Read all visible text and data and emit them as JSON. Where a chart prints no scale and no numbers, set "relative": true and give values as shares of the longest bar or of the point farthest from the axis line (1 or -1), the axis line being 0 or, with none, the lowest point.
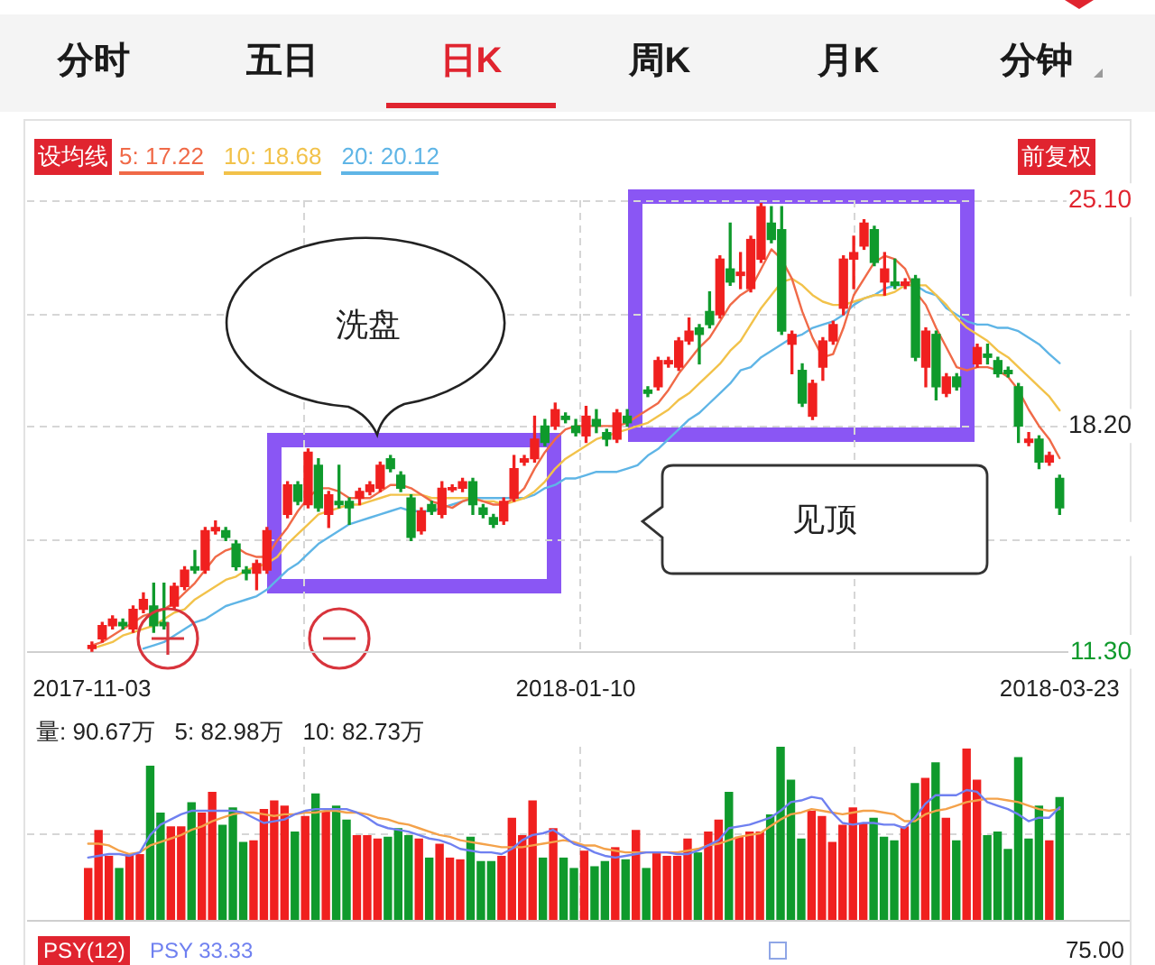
{
  "chart_data": [
    {
      "type": "other",
      "annotations": [
        "分时",
        "五日",
        "日K",
        "周K",
        "月K",
        "分钟"
      ]
    },
    {
      "type": "candlestick",
      "categories": [
        "2017-11-03",
        null,
        null,
        null,
        null,
        null,
        null,
        null,
        null,
        null,
        null,
        null,
        null,
        null,
        null,
        null,
        null,
        null,
        null,
        null,
        null,
        null,
        null,
        null,
        null,
        null,
        null,
        null,
        null,
        null,
        null,
        null,
        null,
        null,
        null,
        null,
        null,
        null,
        null,
        null,
        null,
        null,
        null,
        null,
        null,
        null,
        null,
        "2018-01-10",
        null,
        null,
        null,
        null,
        null,
        null,
        null,
        null,
        null,
        null,
        null,
        null,
        null,
        null,
        null,
        null,
        null,
        null,
        null,
        null,
        null,
        null,
        null,
        null,
        null,
        null,
        null,
        null,
        null,
        null,
        null,
        null,
        null,
        null,
        null,
        null,
        null,
        null,
        null,
        null,
        null,
        null,
        null,
        null,
        null,
        null,
        "2018-03-23"
      ],
      "ohlc": [
        [
          11.4,
          11.6,
          11.3,
          11.5
        ],
        [
          11.7,
          12.2,
          11.6,
          12.1
        ],
        [
          12.1,
          12.4,
          12.0,
          12.3
        ],
        [
          12.2,
          12.3,
          12.0,
          12.1
        ],
        [
          12.0,
          12.7,
          11.9,
          12.6
        ],
        [
          12.6,
          13.1,
          12.5,
          12.9
        ],
        [
          12.7,
          13.4,
          11.9,
          12.1
        ],
        [
          12.2,
          13.4,
          12.0,
          12.1
        ],
        [
          12.7,
          13.4,
          12.6,
          13.3
        ],
        [
          13.3,
          13.9,
          13.2,
          13.8
        ],
        [
          13.9,
          14.4,
          13.7,
          13.8
        ],
        [
          13.8,
          15.1,
          13.7,
          15.0
        ],
        [
          15.0,
          15.3,
          14.9,
          15.1
        ],
        [
          15.0,
          15.1,
          14.7,
          14.8
        ],
        [
          14.6,
          14.7,
          13.8,
          13.9
        ],
        [
          13.8,
          13.9,
          13.5,
          13.7
        ],
        [
          13.7,
          14.1,
          13.2,
          14.0
        ],
        [
          13.8,
          15.1,
          13.7,
          15.0
        ],
        null,
        [
          15.5,
          16.5,
          15.4,
          16.4
        ],
        [
          16.4,
          16.5,
          15.8,
          15.9
        ],
        [
          15.8,
          17.5,
          15.7,
          17.4
        ],
        [
          17.0,
          17.2,
          15.6,
          15.7
        ],
        [
          15.5,
          16.2,
          15.1,
          16.1
        ],
        [
          15.9,
          17.0,
          15.7,
          15.8
        ],
        [
          15.9,
          16.0,
          15.2,
          15.7
        ],
        [
          16.0,
          16.3,
          15.8,
          16.2
        ],
        [
          16.2,
          16.5,
          16.1,
          16.4
        ],
        [
          16.3,
          17.1,
          16.2,
          17.0
        ],
        [
          17.2,
          17.3,
          16.8,
          16.9
        ],
        [
          16.7,
          16.8,
          16.2,
          16.3
        ],
        [
          16.0,
          16.1,
          14.7,
          14.8
        ],
        [
          15.0,
          15.7,
          14.9,
          15.6
        ],
        [
          15.8,
          15.9,
          15.5,
          15.6
        ],
        [
          15.5,
          16.5,
          15.4,
          16.3
        ],
        [
          16.25,
          16.4,
          16.2,
          16.32
        ],
        [
          16.3,
          16.6,
          16.2,
          16.5
        ],
        [
          16.5,
          16.6,
          15.5,
          15.8
        ],
        [
          15.7,
          15.8,
          15.4,
          15.5
        ],
        [
          15.4,
          15.5,
          15.1,
          15.2
        ],
        [
          15.3,
          16.0,
          15.2,
          15.9
        ],
        [
          16.0,
          17.3,
          15.9,
          16.9
        ],
        [
          17.1,
          17.3,
          17.0,
          17.2
        ],
        [
          17.2,
          18.5,
          17.1,
          17.8
        ],
        [
          18.2,
          18.4,
          17.6,
          17.7
        ],
        [
          18.2,
          18.9,
          18.1,
          18.7
        ],
        [
          18.5,
          18.6,
          18.3,
          18.4
        ],
        [
          18.2,
          18.4,
          17.9,
          18.0
        ],
        [
          17.9,
          18.8,
          17.7,
          18.5
        ],
        [
          18.4,
          18.7,
          18.0,
          18.2
        ],
        [
          18.0,
          18.1,
          17.6,
          17.8
        ],
        [
          17.8,
          18.7,
          17.7,
          18.6
        ],
        [
          18.5,
          18.7,
          18.2,
          18.3
        ],
        null,
        [
          19.3,
          19.4,
          19.1,
          19.2
        ],
        [
          19.4,
          20.3,
          19.3,
          20.2
        ],
        [
          20.1,
          20.3,
          20.0,
          20.2
        ],
        [
          20.0,
          20.9,
          19.9,
          20.8
        ],
        [
          20.8,
          21.5,
          20.7,
          21.1
        ],
        [
          21.2,
          21.3,
          20.1,
          21.0
        ],
        [
          21.7,
          22.3,
          21.2,
          21.3
        ],
        [
          21.6,
          23.4,
          21.5,
          23.3
        ],
        [
          23.0,
          24.4,
          22.5,
          22.6
        ],
        [
          22.8,
          23.5,
          22.4,
          22.9
        ],
        [
          22.4,
          24.0,
          22.3,
          23.9
        ],
        [
          23.3,
          25.0,
          23.2,
          24.9
        ],
        [
          24.4,
          24.9,
          23.8,
          23.9
        ],
        [
          24.2,
          24.9,
          21.0,
          21.1
        ],
        [
          20.7,
          21.1,
          19.8,
          21.0
        ],
        [
          19.9,
          20.1,
          18.8,
          18.9
        ],
        [
          18.5,
          19.6,
          18.4,
          19.5
        ],
        [
          20.0,
          20.9,
          19.6,
          20.8
        ],
        [
          20.8,
          21.4,
          20.7,
          21.3
        ],
        [
          21.8,
          23.4,
          21.6,
          23.3
        ],
        [
          23.3,
          24.0,
          22.4,
          23.5
        ],
        [
          23.7,
          24.5,
          23.6,
          24.4
        ],
        [
          24.2,
          24.3,
          23.1,
          23.2
        ],
        [
          22.6,
          23.5,
          22.2,
          23.0
        ],
        [
          22.6,
          23.3,
          22.4,
          22.5
        ],
        [
          22.5,
          22.7,
          22.4,
          22.6
        ],
        [
          22.7,
          22.8,
          20.2,
          20.3
        ],
        [
          20.0,
          21.2,
          19.4,
          21.1
        ],
        [
          21.0,
          21.1,
          19.0,
          19.4
        ],
        [
          19.2,
          19.8,
          19.1,
          19.7
        ],
        [
          19.7,
          19.8,
          19.3,
          19.4
        ],
        null,
        [
          20.1,
          20.7,
          20.0,
          20.6
        ],
        [
          20.4,
          20.7,
          20.1,
          20.3
        ],
        [
          20.2,
          20.3,
          19.7,
          19.8
        ],
        [
          19.9,
          20.0,
          19.7,
          19.8
        ],
        [
          19.4,
          19.5,
          17.7,
          18.2
        ],
        [
          17.7,
          18.0,
          17.6,
          17.8
        ],
        [
          17.8,
          17.9,
          16.9,
          17.1
        ],
        [
          17.1,
          17.4,
          17.0,
          17.3
        ],
        [
          16.6,
          16.7,
          15.5,
          15.7
        ]
      ],
      "colors": [
        "#f0201f",
        "#f0201f",
        "#f0201f",
        "#0f9a2c",
        "#f0201f",
        "#f0201f",
        "#0f9a2c",
        "#0f9a2c",
        "#f0201f",
        "#f0201f",
        "#0f9a2c",
        "#f0201f",
        "#f0201f",
        "#0f9a2c",
        "#0f9a2c",
        "#0f9a2c",
        "#f0201f",
        "#f0201f",
        null,
        "#f0201f",
        "#0f9a2c",
        "#f0201f",
        "#0f9a2c",
        "#f0201f",
        "#0f9a2c",
        "#0f9a2c",
        "#f0201f",
        "#f0201f",
        "#f0201f",
        "#0f9a2c",
        "#0f9a2c",
        "#0f9a2c",
        "#f0201f",
        "#0f9a2c",
        "#f0201f",
        "#f0201f",
        "#f0201f",
        "#0f9a2c",
        "#0f9a2c",
        "#0f9a2c",
        "#f0201f",
        "#f0201f",
        "#f0201f",
        "#f0201f",
        "#0f9a2c",
        "#f0201f",
        "#0f9a2c",
        "#0f9a2c",
        "#f0201f",
        "#0f9a2c",
        "#0f9a2c",
        "#f0201f",
        "#0f9a2c",
        null,
        "#0f9a2c",
        "#f0201f",
        "#f0201f",
        "#f0201f",
        "#f0201f",
        "#0f9a2c",
        "#0f9a2c",
        "#f0201f",
        "#0f9a2c",
        "#f0201f",
        "#f0201f",
        "#f0201f",
        "#0f9a2c",
        "#0f9a2c",
        "#f0201f",
        "#0f9a2c",
        "#f0201f",
        "#f0201f",
        "#f0201f",
        "#f0201f",
        "#f0201f",
        "#f0201f",
        "#0f9a2c",
        "#f0201f",
        "#0f9a2c",
        "#f0201f",
        "#0f9a2c",
        "#f0201f",
        "#0f9a2c",
        "#f0201f",
        "#0f9a2c",
        null,
        "#f0201f",
        "#0f9a2c",
        "#0f9a2c",
        "#0f9a2c",
        "#0f9a2c",
        "#f0201f",
        "#0f9a2c",
        "#f0201f",
        "#0f9a2c"
      ],
      "series": [
        {
          "name": "5: 17.22",
          "type": "line",
          "color": "#f06a48",
          "values": [
            11.5,
            11.6,
            11.8,
            12.0,
            12.2,
            12.4,
            12.5,
            12.6,
            12.8,
            13.1,
            13.4,
            13.8,
            14.2,
            14.4,
            14.5,
            14.3,
            14.2,
            14.2,
            14.7,
            15.1,
            15.6,
            16.0,
            16.3,
            16.3,
            16.2,
            16.0,
            16.0,
            16.0,
            16.2,
            16.4,
            16.4,
            16.3,
            16.1,
            15.9,
            15.8,
            15.7,
            15.9,
            16.0,
            15.9,
            15.8,
            15.8,
            16.0,
            16.3,
            16.9,
            17.4,
            17.8,
            18.1,
            18.2,
            18.2,
            18.2,
            18.2,
            18.2,
            18.3,
            18.5,
            18.7,
            18.9,
            19.3,
            19.8,
            20.2,
            20.6,
            20.9,
            21.4,
            21.9,
            22.2,
            22.4,
            23.0,
            23.6,
            23.3,
            22.7,
            21.7,
            20.9,
            20.3,
            20.4,
            21.2,
            22.2,
            22.7,
            23.2,
            23.4,
            23.3,
            23.0,
            22.3,
            21.9,
            21.2,
            20.6,
            20.0,
            19.9,
            20.0,
            20.0,
            19.9,
            19.7,
            19.3,
            18.7,
            18.2,
            17.8,
            17.22
          ]
        },
        {
          "name": "10: 18.68",
          "type": "line",
          "color": "#f2c24a",
          "values": [
            11.4,
            11.5,
            11.6,
            11.8,
            11.9,
            12.0,
            12.1,
            12.3,
            12.5,
            12.6,
            12.9,
            13.1,
            13.3,
            13.5,
            13.6,
            13.8,
            13.9,
            14.0,
            14.2,
            14.6,
            14.9,
            15.2,
            15.5,
            15.6,
            15.7,
            15.8,
            15.8,
            15.9,
            16.0,
            16.1,
            16.1,
            16.1,
            16.1,
            16.0,
            16.0,
            16.0,
            16.0,
            16.0,
            15.9,
            15.9,
            15.8,
            15.9,
            16.0,
            16.2,
            16.5,
            16.9,
            17.2,
            17.4,
            17.6,
            17.8,
            17.9,
            18.0,
            18.1,
            18.2,
            18.3,
            18.5,
            18.7,
            19.0,
            19.2,
            19.5,
            19.8,
            20.1,
            20.5,
            20.8,
            21.3,
            21.8,
            22.2,
            22.6,
            22.7,
            22.5,
            22.2,
            22.0,
            21.9,
            21.9,
            22.0,
            22.1,
            22.2,
            22.2,
            22.3,
            22.5,
            22.5,
            22.5,
            22.2,
            21.9,
            21.5,
            21.2,
            21.0,
            20.8,
            20.5,
            20.3,
            20.0,
            19.7,
            19.4,
            19.1,
            18.68
          ]
        },
        {
          "name": "20: 20.12",
          "type": "line",
          "color": "#5fb5e6",
          "values": [
            null,
            null,
            null,
            null,
            null,
            11.4,
            11.5,
            11.6,
            11.8,
            12.0,
            12.2,
            12.3,
            12.5,
            12.7,
            12.8,
            12.9,
            13.0,
            13.2,
            13.5,
            13.8,
            14.0,
            14.3,
            14.6,
            14.8,
            15.0,
            15.2,
            15.3,
            15.4,
            15.5,
            15.6,
            15.7,
            15.6,
            15.6,
            15.6,
            15.7,
            15.8,
            15.9,
            16.0,
            16.0,
            16.0,
            16.0,
            16.0,
            16.0,
            16.1,
            16.3,
            16.4,
            16.6,
            16.6,
            16.7,
            16.8,
            16.8,
            16.8,
            16.9,
            17.0,
            17.3,
            17.5,
            17.8,
            18.1,
            18.4,
            18.6,
            18.9,
            19.2,
            19.5,
            19.9,
            20.0,
            20.3,
            20.5,
            20.7,
            20.9,
            21.0,
            21.2,
            21.3,
            21.4,
            21.6,
            21.9,
            22.1,
            22.2,
            22.4,
            22.5,
            22.5,
            22.5,
            22.3,
            22.2,
            21.8,
            21.6,
            21.4,
            21.3,
            21.3,
            21.2,
            21.2,
            21.1,
            20.9,
            20.7,
            20.4,
            20.12
          ]
        }
      ],
      "ylim": [
        11.3,
        25.1
      ],
      "yticks": [
        {
          "value": 11.3,
          "label": "11.30"
        },
        {
          "value": 14.75,
          "label": null
        },
        {
          "value": 18.2,
          "label": "18.20"
        },
        {
          "value": 21.65,
          "label": null
        },
        {
          "value": 25.1,
          "label": "25.10"
        }
      ],
      "grid": true,
      "legend": "top left",
      "annotations": [
        "设均线",
        "前复权",
        "洗盘",
        "见顶"
      ]
    },
    {
      "type": "bar",
      "relative": true,
      "tick_labels": false,
      "categories": [
        "2017-11-03",
        null,
        null,
        null,
        null,
        null,
        null,
        null,
        null,
        null,
        null,
        null,
        null,
        null,
        null,
        null,
        null,
        null,
        null,
        null,
        null,
        null,
        null,
        null,
        null,
        null,
        null,
        null,
        null,
        null,
        null,
        null,
        null,
        null,
        null,
        null,
        null,
        null,
        null,
        null,
        null,
        null,
        null,
        null,
        null,
        null,
        null,
        "2018-01-10",
        null,
        null,
        null,
        null,
        null,
        null,
        null,
        null,
        null,
        null,
        null,
        null,
        null,
        null,
        null,
        null,
        null,
        null,
        null,
        null,
        null,
        null,
        null,
        null,
        null,
        null,
        null,
        null,
        null,
        null,
        null,
        null,
        null,
        null,
        null,
        null,
        null,
        null,
        null,
        null,
        null,
        null,
        null,
        null,
        null,
        null,
        "2018-03-23"
      ],
      "series": [
        {
          "type": "bar",
          "colors": [
            "#f0201f",
            "#f0201f",
            "#f0201f",
            "#0f9a2c",
            "#f0201f",
            "#f0201f",
            "#0f9a2c",
            "#0f9a2c",
            "#f0201f",
            "#f0201f",
            "#0f9a2c",
            "#f0201f",
            "#f0201f",
            "#0f9a2c",
            "#0f9a2c",
            "#0f9a2c",
            "#f0201f",
            "#f0201f",
            "#f0201f",
            "#f0201f",
            "#0f9a2c",
            "#f0201f",
            "#0f9a2c",
            "#f0201f",
            "#0f9a2c",
            "#0f9a2c",
            "#f0201f",
            "#f0201f",
            "#f0201f",
            "#0f9a2c",
            "#0f9a2c",
            "#0f9a2c",
            "#f0201f",
            "#0f9a2c",
            "#f0201f",
            "#f0201f",
            "#f0201f",
            "#0f9a2c",
            "#0f9a2c",
            "#0f9a2c",
            "#f0201f",
            "#f0201f",
            "#f0201f",
            "#f0201f",
            "#0f9a2c",
            "#f0201f",
            "#0f9a2c",
            "#0f9a2c",
            "#f0201f",
            "#0f9a2c",
            "#0f9a2c",
            "#f0201f",
            "#0f9a2c",
            "#f0201f",
            "#0f9a2c",
            "#f0201f",
            "#f0201f",
            "#f0201f",
            "#f0201f",
            "#0f9a2c",
            "#f0201f",
            "#f0201f",
            "#0f9a2c",
            "#f0201f",
            "#f0201f",
            "#f0201f",
            "#0f9a2c",
            "#0f9a2c",
            "#0f9a2c",
            "#0f9a2c",
            "#f0201f",
            "#f0201f",
            "#f0201f",
            "#f0201f",
            "#f0201f",
            "#f0201f",
            "#0f9a2c",
            "#0f9a2c",
            "#0f9a2c",
            "#f0201f",
            "#0f9a2c",
            "#f0201f",
            "#0f9a2c",
            "#f0201f",
            "#0f9a2c",
            "#f0201f",
            "#f0201f",
            "#0f9a2c",
            "#0f9a2c",
            "#0f9a2c",
            "#0f9a2c",
            "#0f9a2c",
            "#0f9a2c",
            "#f0201f",
            "#0f9a2c"
          ],
          "values": [
            0.3,
            0.52,
            0.37,
            0.3,
            0.38,
            0.38,
            0.89,
            0.62,
            0.54,
            0.54,
            0.68,
            0.62,
            0.74,
            0.55,
            0.65,
            0.45,
            0.46,
            0.64,
            0.69,
            0.66,
            0.51,
            0.6,
            0.73,
            0.63,
            0.66,
            0.58,
            0.49,
            0.49,
            0.47,
            0.48,
            0.53,
            0.49,
            0.47,
            0.36,
            0.44,
            0.36,
            0.35,
            0.48,
            0.34,
            0.34,
            0.37,
            0.59,
            0.49,
            0.69,
            0.36,
            0.53,
            0.36,
            0.3,
            0.4,
            0.31,
            0.34,
            0.42,
            0.35,
            0.52,
            0.3,
            0.39,
            0.37,
            0.37,
            0.47,
            0.39,
            0.51,
            0.58,
            0.74,
            0.48,
            0.51,
            0.51,
            0.61,
            1,
            0.81,
            0.47,
            0.63,
            0.6,
            0.45,
            0.55,
            0.65,
            0.56,
            0.59,
            0.48,
            0.46,
            0.54,
            0.79,
            0.82,
            0.91,
            0.59,
            0.46,
            0.99,
            0.81,
            0.49,
            0.51,
            0.41,
            0.94,
            0.47,
            0.66,
            0.46,
            0.71
          ]
        },
        {
          "type": "line",
          "color": "#6f80f0",
          "values": [
            0.36,
            0.37,
            0.38,
            0.38,
            0.37,
            0.39,
            0.49,
            0.55,
            0.58,
            0.61,
            0.63,
            0.63,
            0.63,
            0.63,
            0.63,
            0.62,
            0.59,
            0.56,
            0.57,
            0.58,
            0.61,
            0.63,
            0.64,
            0.64,
            0.64,
            0.64,
            0.62,
            0.59,
            0.55,
            0.53,
            0.52,
            0.51,
            0.49,
            0.47,
            0.46,
            0.44,
            0.41,
            0.4,
            0.39,
            0.39,
            0.38,
            0.41,
            0.46,
            0.49,
            0.5,
            0.52,
            0.48,
            0.44,
            0.42,
            0.39,
            0.37,
            0.36,
            0.37,
            0.38,
            0.39,
            0.39,
            0.39,
            0.38,
            0.38,
            0.4,
            0.43,
            0.46,
            0.53,
            0.54,
            0.55,
            0.57,
            0.59,
            0.63,
            0.68,
            0.69,
            0.71,
            0.7,
            0.62,
            0.56,
            0.55,
            0.56,
            0.56,
            0.55,
            0.55,
            0.53,
            0.59,
            0.67,
            0.72,
            0.72,
            0.72,
            0.75,
            0.74,
            0.68,
            0.66,
            0.64,
            0.61,
            0.57,
            0.59,
            0.59,
            0.65
          ]
        },
        {
          "type": "line",
          "color": "#f4a24a",
          "values": [
            0.44,
            0.44,
            0.43,
            0.4,
            0.38,
            0.39,
            0.43,
            0.45,
            0.47,
            0.49,
            0.52,
            0.54,
            0.57,
            0.59,
            0.61,
            0.62,
            0.62,
            0.61,
            0.6,
            0.61,
            0.61,
            0.62,
            0.62,
            0.63,
            0.63,
            0.62,
            0.62,
            0.61,
            0.59,
            0.58,
            0.56,
            0.55,
            0.53,
            0.51,
            0.49,
            0.48,
            0.46,
            0.45,
            0.44,
            0.43,
            0.42,
            0.42,
            0.42,
            0.43,
            0.44,
            0.45,
            0.46,
            0.45,
            0.43,
            0.43,
            0.41,
            0.4,
            0.39,
            0.39,
            0.39,
            0.39,
            0.39,
            0.39,
            0.4,
            0.41,
            0.43,
            0.44,
            0.46,
            0.48,
            0.49,
            0.5,
            0.54,
            0.58,
            0.61,
            0.62,
            0.64,
            0.63,
            0.62,
            0.61,
            0.62,
            0.63,
            0.63,
            0.62,
            0.61,
            0.57,
            0.57,
            0.61,
            0.63,
            0.64,
            0.66,
            0.68,
            0.69,
            0.7,
            0.7,
            0.69,
            0.68,
            0.66,
            0.64,
            0.63,
            0.64
          ]
        }
      ],
      "grid": true,
      "annotations": [
        "量: 90.67万",
        "5: 82.98万",
        "10: 82.73万"
      ]
    },
    {
      "type": "other",
      "annotations": [
        "PSY(12)",
        "PSY 33.33",
        "75.00"
      ]
    }
  ]
}
